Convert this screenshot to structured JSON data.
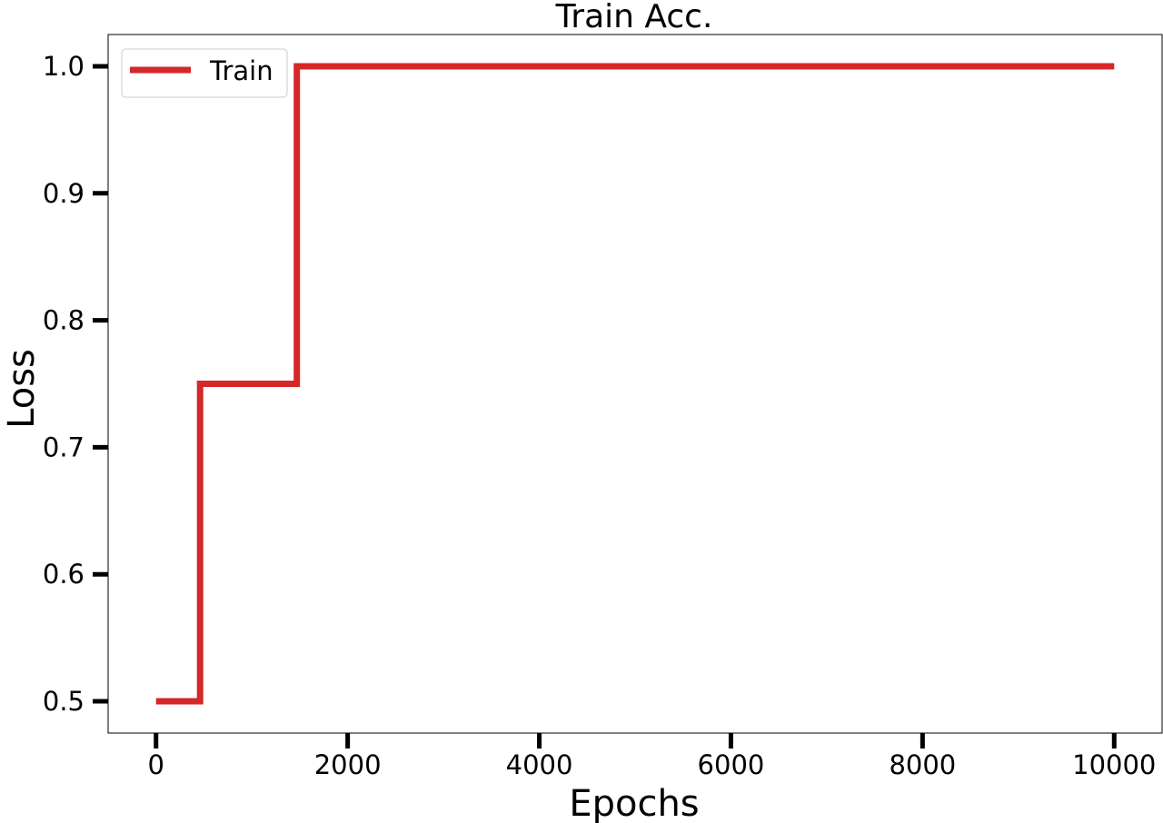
{
  "chart_data": {
    "type": "line",
    "title": "Train Acc.",
    "xlabel": "Epochs",
    "ylabel": "Loss",
    "xlim": [
      -500,
      10500
    ],
    "ylim": [
      0.475,
      1.025
    ],
    "xticks": [
      0,
      2000,
      4000,
      6000,
      8000,
      10000
    ],
    "xtick_labels": [
      "0",
      "2000",
      "4000",
      "6000",
      "8000",
      "10000"
    ],
    "yticks": [
      0.5,
      0.6,
      0.7,
      0.8,
      0.9,
      1.0
    ],
    "ytick_labels": [
      "0.5",
      "0.6",
      "0.7",
      "0.8",
      "0.9",
      "1.0"
    ],
    "grid": false,
    "legend_position": "top-left",
    "series": [
      {
        "name": "Train",
        "color": "#d62728",
        "step": true,
        "x": [
          0,
          460,
          1470,
          10000
        ],
        "y": [
          0.5,
          0.75,
          1.0,
          1.0
        ]
      }
    ]
  }
}
